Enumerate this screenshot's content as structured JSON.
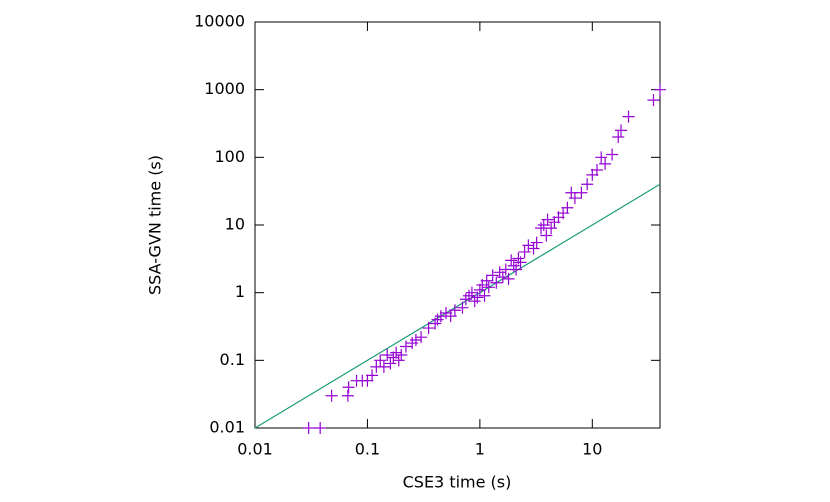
{
  "chart_data": {
    "type": "scatter",
    "xlabel": "CSE3 time (s)",
    "ylabel": "SSA-GVN time (s)",
    "xscale": "log",
    "yscale": "log",
    "xlim": [
      0.01,
      40
    ],
    "ylim": [
      0.01,
      10000
    ],
    "xticks": [
      0.01,
      0.1,
      1,
      10
    ],
    "yticks": [
      0.01,
      0.1,
      1,
      10,
      100,
      1000,
      10000
    ],
    "reference_line": {
      "color": "#1a9c7a",
      "x": [
        0.01,
        40
      ],
      "y": [
        0.01,
        40
      ]
    },
    "series": [
      {
        "color": "#9400d3",
        "x": [
          0.03,
          0.038,
          0.048,
          0.067,
          0.068,
          0.08,
          0.09,
          0.1,
          0.11,
          0.12,
          0.13,
          0.14,
          0.15,
          0.16,
          0.17,
          0.18,
          0.19,
          0.2,
          0.22,
          0.25,
          0.27,
          0.3,
          0.35,
          0.4,
          0.42,
          0.45,
          0.5,
          0.55,
          0.6,
          0.7,
          0.75,
          0.8,
          0.85,
          0.9,
          0.95,
          1,
          1.05,
          1.1,
          1.15,
          1.2,
          1.3,
          1.4,
          1.5,
          1.6,
          1.7,
          1.8,
          1.9,
          2,
          2.1,
          2.2,
          2.3,
          2.5,
          2.7,
          3,
          3.2,
          3.5,
          3.7,
          3.9,
          4,
          4.3,
          4.6,
          5,
          5.5,
          6,
          6.5,
          7,
          8,
          9,
          10,
          11,
          12,
          13,
          15,
          17,
          18,
          21,
          35,
          40
        ],
        "y": [
          0.01,
          0.01,
          0.03,
          0.03,
          0.04,
          0.05,
          0.05,
          0.05,
          0.06,
          0.08,
          0.1,
          0.08,
          0.12,
          0.09,
          0.11,
          0.13,
          0.1,
          0.12,
          0.16,
          0.18,
          0.2,
          0.22,
          0.3,
          0.35,
          0.4,
          0.45,
          0.5,
          0.45,
          0.55,
          0.6,
          0.8,
          0.9,
          1,
          0.75,
          0.85,
          1.1,
          1.3,
          0.9,
          1.5,
          1.2,
          1.8,
          1.4,
          2,
          1.7,
          2.2,
          1.6,
          3,
          2.5,
          2.2,
          3.2,
          2.8,
          4,
          5,
          4.5,
          5.5,
          9,
          10,
          7,
          12,
          9,
          11,
          13,
          15,
          18,
          30,
          25,
          30,
          40,
          55,
          65,
          100,
          80,
          110,
          200,
          250,
          400,
          700,
          1000
        ]
      }
    ]
  }
}
